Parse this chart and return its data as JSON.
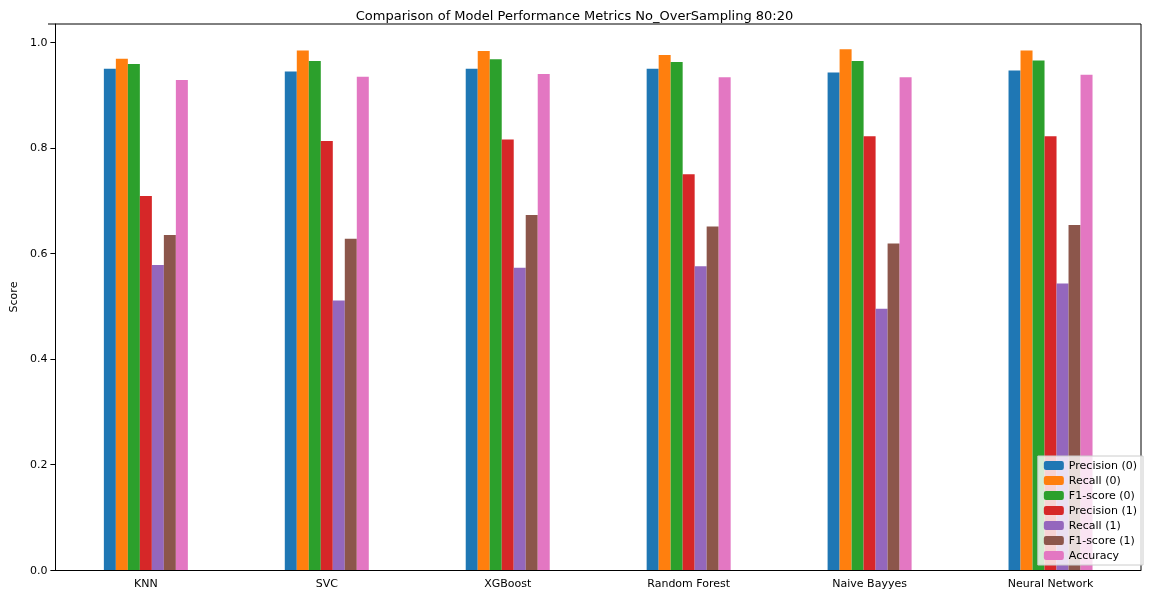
{
  "chart_data": {
    "type": "bar",
    "title": "Comparison of Model Performance Metrics No_OverSampling 80:20",
    "ylabel": "Score",
    "categories": [
      "KNN",
      "SVC",
      "XGBoost",
      "Random Forest",
      "Naive Bayyes",
      "Neural Network"
    ],
    "series": [
      {
        "name": "Precision (0)",
        "color": "#1f77b4",
        "values": [
          0.95,
          0.945,
          0.95,
          0.95,
          0.943,
          0.947
        ]
      },
      {
        "name": "Recall (0)",
        "color": "#ff7f0e",
        "values": [
          0.969,
          0.985,
          0.984,
          0.976,
          0.987,
          0.985
        ]
      },
      {
        "name": "F1-score (0)",
        "color": "#2ca02c",
        "values": [
          0.959,
          0.965,
          0.968,
          0.963,
          0.965,
          0.966
        ]
      },
      {
        "name": "Precision (1)",
        "color": "#d62728",
        "values": [
          0.709,
          0.813,
          0.816,
          0.75,
          0.822,
          0.822
        ]
      },
      {
        "name": "Recall (1)",
        "color": "#9467bd",
        "values": [
          0.578,
          0.511,
          0.573,
          0.576,
          0.495,
          0.543
        ]
      },
      {
        "name": "F1-score (1)",
        "color": "#8c564b",
        "values": [
          0.635,
          0.628,
          0.673,
          0.651,
          0.619,
          0.654
        ]
      },
      {
        "name": "Accuracy",
        "color": "#e377c2",
        "values": [
          0.929,
          0.935,
          0.94,
          0.934,
          0.934,
          0.939
        ]
      }
    ],
    "ylim": [
      0,
      1.035
    ],
    "yticks": [
      {
        "value": 0,
        "label": "0.0"
      },
      {
        "value": 0.2,
        "label": "0.2"
      },
      {
        "value": 0.4,
        "label": "0.4"
      },
      {
        "value": 0.6,
        "label": "0.6"
      },
      {
        "value": 0.8,
        "label": "0.8"
      },
      {
        "value": 1,
        "label": "1.0"
      }
    ],
    "grid": false,
    "legend": "bottom right"
  }
}
